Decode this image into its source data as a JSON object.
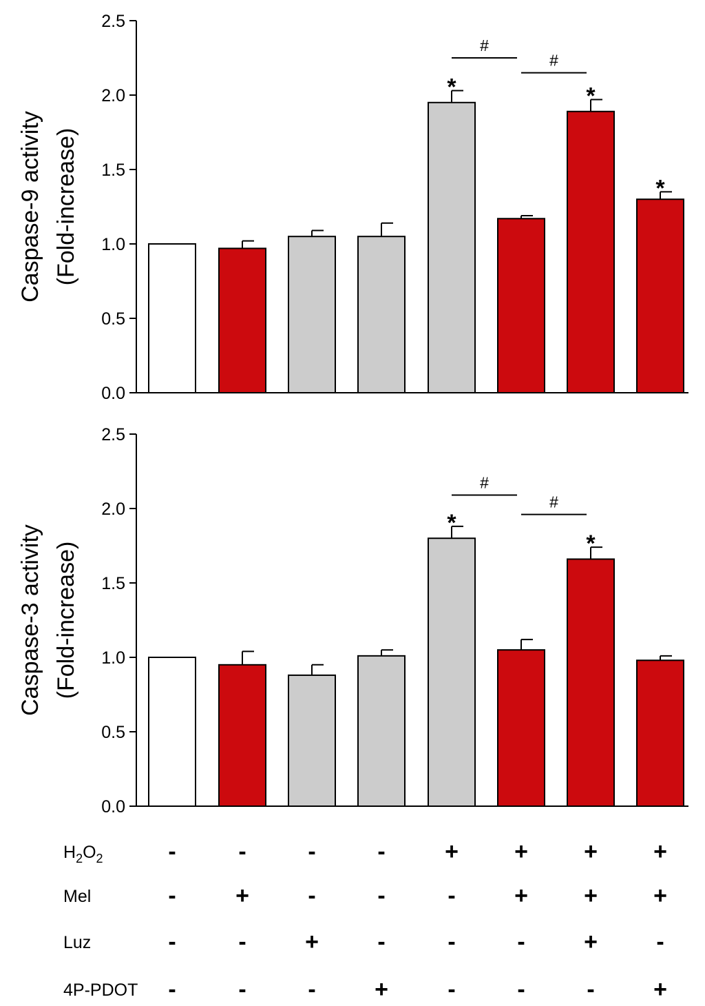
{
  "chart_data": [
    {
      "type": "bar",
      "panel": "top",
      "ylabel_line1": "Caspase-9 activity",
      "ylabel_line2": "(Fold-increase)",
      "ylim": [
        0,
        2.5
      ],
      "yticks": [
        "0.0",
        "0.5",
        "1.0",
        "1.5",
        "2.0",
        "2.5"
      ],
      "values": [
        1.0,
        0.97,
        1.05,
        1.05,
        1.95,
        1.17,
        1.89,
        1.3
      ],
      "errors": [
        0.0,
        0.05,
        0.04,
        0.09,
        0.08,
        0.02,
        0.08,
        0.05
      ],
      "fills": [
        "#ffffff",
        "#cc0a0e",
        "#cccccc",
        "#cccccc",
        "#cccccc",
        "#cc0a0e",
        "#cc0a0e",
        "#cc0a0e"
      ],
      "stars": [
        "",
        "",
        "",
        "",
        "*",
        "",
        "*",
        "*"
      ],
      "brackets": [
        {
          "from": 4,
          "to": 5,
          "label": "#",
          "level": 2.25
        },
        {
          "from": 5,
          "to": 6,
          "label": "#",
          "level": 2.15
        }
      ]
    },
    {
      "type": "bar",
      "panel": "bottom",
      "ylabel_line1": "Caspase-3 activity",
      "ylabel_line2": "(Fold-increase)",
      "ylim": [
        0,
        2.5
      ],
      "yticks": [
        "0.0",
        "0.5",
        "1.0",
        "1.5",
        "2.0",
        "2.5"
      ],
      "values": [
        1.0,
        0.95,
        0.88,
        1.01,
        1.8,
        1.05,
        1.66,
        0.98
      ],
      "errors": [
        0.0,
        0.09,
        0.07,
        0.04,
        0.08,
        0.07,
        0.08,
        0.03
      ],
      "fills": [
        "#ffffff",
        "#cc0a0e",
        "#cccccc",
        "#cccccc",
        "#cccccc",
        "#cc0a0e",
        "#cc0a0e",
        "#cc0a0e"
      ],
      "stars": [
        "",
        "",
        "",
        "",
        "*",
        "",
        "*",
        ""
      ],
      "brackets": [
        {
          "from": 4,
          "to": 5,
          "label": "#",
          "level": 2.09
        },
        {
          "from": 5,
          "to": 6,
          "label": "#",
          "level": 1.96
        }
      ]
    }
  ],
  "conditions": [
    {
      "label": "H2O2",
      "label_main": "H",
      "label_sub1": "2",
      "label_mid": "O",
      "label_sub2": "2",
      "signs": [
        "-",
        "-",
        "-",
        "-",
        "+",
        "+",
        "+",
        "+"
      ]
    },
    {
      "label": "Mel",
      "signs": [
        "-",
        "+",
        "-",
        "-",
        "-",
        "+",
        "+",
        "+"
      ]
    },
    {
      "label": "Luz",
      "signs": [
        "-",
        "-",
        "+",
        "-",
        "-",
        "-",
        "+",
        "-"
      ]
    },
    {
      "label": "4P-PDOT",
      "signs": [
        "-",
        "-",
        "-",
        "+",
        "-",
        "-",
        "-",
        "+"
      ]
    }
  ]
}
